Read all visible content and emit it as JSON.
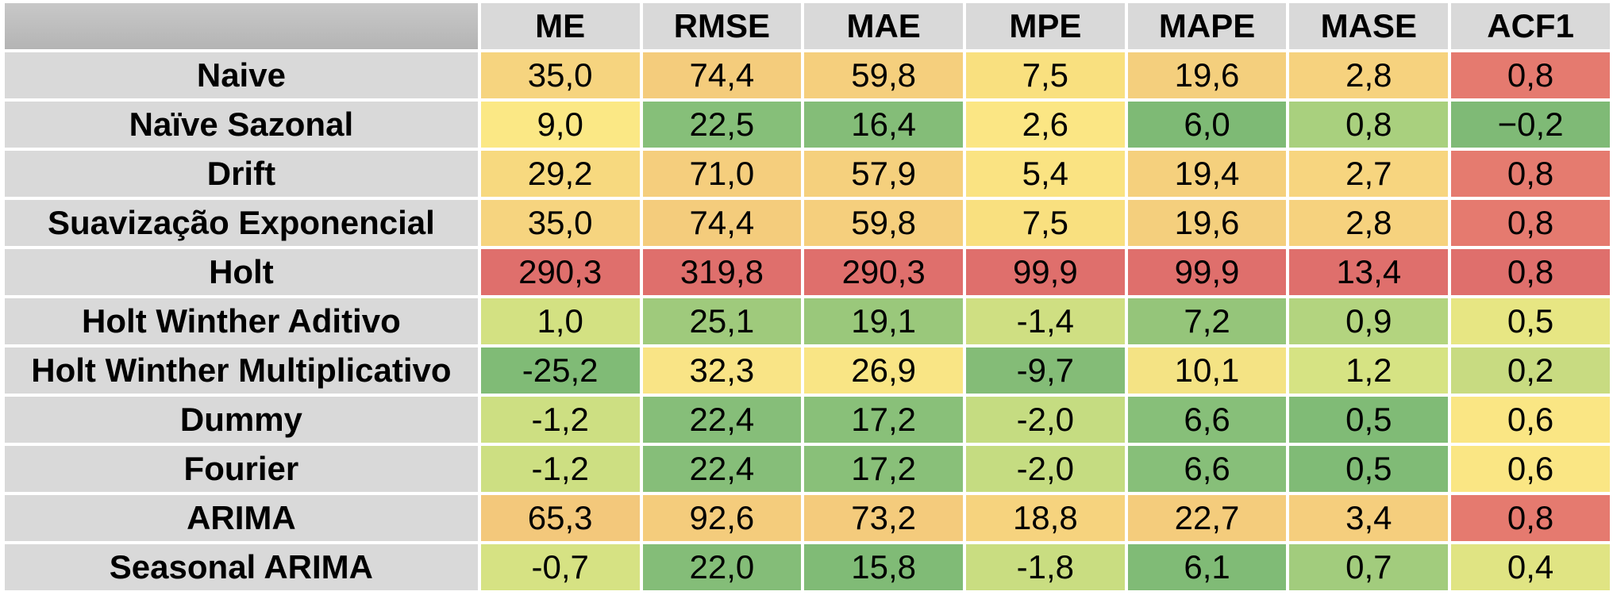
{
  "table": {
    "columns": [
      "ME",
      "RMSE",
      "MAE",
      "MPE",
      "MAPE",
      "MASE",
      "ACF1"
    ],
    "rows": [
      {
        "label": "Naive",
        "values": [
          "35,0",
          "74,4",
          "59,8",
          "7,5",
          "19,6",
          "2,8",
          "0,8"
        ],
        "colors": [
          "#f6d47f",
          "#f4cc7c",
          "#f5cf7d",
          "#f9e07f",
          "#f4cf7d",
          "#f6d27e",
          "#e57a6f"
        ]
      },
      {
        "label": "Naïve Sazonal",
        "values": [
          "9,0",
          "22,5",
          "16,4",
          "2,6",
          "6,0",
          "0,8",
          "−0,2"
        ],
        "colors": [
          "#fbe885",
          "#86bf79",
          "#84bd78",
          "#fbe684",
          "#7eba75",
          "#a9d07e",
          "#7fba76"
        ]
      },
      {
        "label": "Drift",
        "values": [
          "29,2",
          "71,0",
          "57,9",
          "5,4",
          "19,4",
          "2,7",
          "0,8"
        ],
        "colors": [
          "#f7d97f",
          "#f5ce7d",
          "#f5d07d",
          "#fae382",
          "#f5d07d",
          "#f7d57f",
          "#e57b6f"
        ]
      },
      {
        "label": "Suavização Exponencial",
        "values": [
          "35,0",
          "74,4",
          "59,8",
          "7,5",
          "19,6",
          "2,8",
          "0,8"
        ],
        "colors": [
          "#f6d47f",
          "#f4cc7c",
          "#f5cf7d",
          "#f9e07f",
          "#f4cf7d",
          "#f6d27e",
          "#e57a6f"
        ]
      },
      {
        "label": "Holt",
        "values": [
          "290,3",
          "319,8",
          "290,3",
          "99,9",
          "99,9",
          "13,4",
          "0,8"
        ],
        "colors": [
          "#df6f6c",
          "#df6f6c",
          "#df6f6c",
          "#df6f6c",
          "#df6f6c",
          "#df6f6c",
          "#df6f6c"
        ]
      },
      {
        "label": "Holt Winther Aditivo",
        "values": [
          "1,0",
          "25,1",
          "19,1",
          "-1,4",
          "7,2",
          "0,9",
          "0,5"
        ],
        "colors": [
          "#d3e182",
          "#9fca7c",
          "#9ac87b",
          "#cfdf82",
          "#95c57a",
          "#b3d47f",
          "#e7e683"
        ]
      },
      {
        "label": "Holt Winther Multiplicativo",
        "values": [
          "-25,2",
          "32,3",
          "26,9",
          "-9,7",
          "10,1",
          "1,2",
          "0,2"
        ],
        "colors": [
          "#80bb76",
          "#f9e486",
          "#f9e585",
          "#84bc77",
          "#f4e384",
          "#d6e383",
          "#c8db81"
        ]
      },
      {
        "label": "Dummy",
        "values": [
          "-1,2",
          "22,4",
          "17,2",
          "-2,0",
          "6,6",
          "0,5",
          "0,6"
        ],
        "colors": [
          "#cddf82",
          "#86be79",
          "#89c079",
          "#c5dc81",
          "#87bf79",
          "#80bb76",
          "#fae684"
        ]
      },
      {
        "label": "Fourier",
        "values": [
          "-1,2",
          "22,4",
          "17,2",
          "-2,0",
          "6,6",
          "0,5",
          "0,6"
        ],
        "colors": [
          "#cddf82",
          "#86be79",
          "#89c079",
          "#c5dc81",
          "#87bf79",
          "#80bb76",
          "#fae684"
        ]
      },
      {
        "label": "ARIMA",
        "values": [
          "65,3",
          "92,6",
          "73,2",
          "18,8",
          "22,7",
          "3,4",
          "0,8"
        ],
        "colors": [
          "#f3c87b",
          "#f4cc7c",
          "#f4cb7c",
          "#f6d37e",
          "#f4cc7c",
          "#f5ce7d",
          "#e57a6f"
        ]
      },
      {
        "label": "Seasonal ARIMA",
        "values": [
          "-0,7",
          "22,0",
          "15,8",
          "-1,8",
          "6,1",
          "0,7",
          "0,4"
        ],
        "colors": [
          "#d6e283",
          "#84bd78",
          "#80bb76",
          "#c9dd81",
          "#80bb76",
          "#a2cc7d",
          "#e0e483"
        ]
      }
    ]
  }
}
